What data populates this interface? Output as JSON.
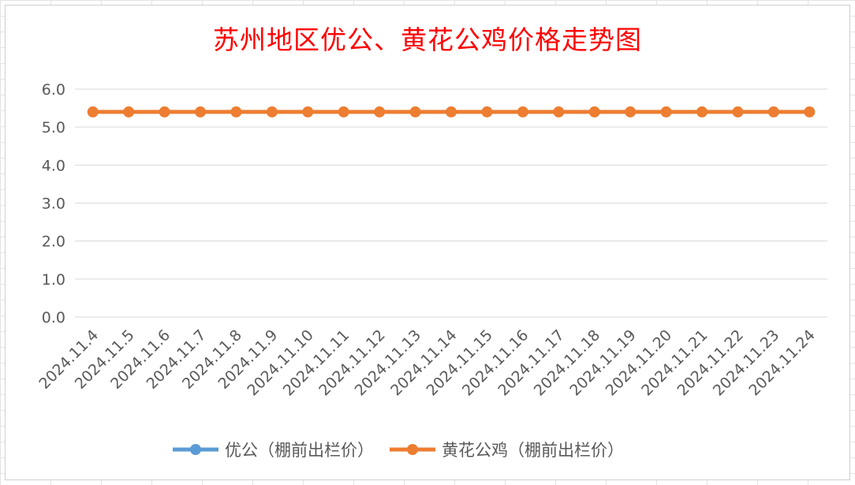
{
  "chart_data": {
    "type": "line",
    "title": "苏州地区优公、黄花公鸡价格走势图",
    "categories": [
      "2024.11.4",
      "2024.11.5",
      "2024.11.6",
      "2024.11.7",
      "2024.11.8",
      "2024.11.9",
      "2024.11.10",
      "2024.11.11",
      "2024.11.12",
      "2024.11.13",
      "2024.11.14",
      "2024.11.15",
      "2024.11.16",
      "2024.11.17",
      "2024.11.18",
      "2024.11.19",
      "2024.11.20",
      "2024.11.21",
      "2024.11.22",
      "2024.11.23",
      "2024.11.24"
    ],
    "series": [
      {
        "name": "优公（棚前出栏价）",
        "color": "#5b9bd5",
        "values": [
          null,
          null,
          null,
          null,
          null,
          null,
          null,
          null,
          null,
          null,
          null,
          null,
          null,
          null,
          null,
          null,
          null,
          null,
          null,
          null,
          null
        ]
      },
      {
        "name": "黄花公鸡（棚前出栏价）",
        "color": "#ed7d31",
        "values": [
          5.4,
          5.4,
          5.4,
          5.4,
          5.4,
          5.4,
          5.4,
          5.4,
          5.4,
          5.4,
          5.4,
          5.4,
          5.4,
          5.4,
          5.4,
          5.4,
          5.4,
          5.4,
          5.4,
          5.4,
          5.4
        ]
      }
    ],
    "ylim": [
      0,
      6
    ],
    "y_ticks": [
      "0.0",
      "1.0",
      "2.0",
      "3.0",
      "4.0",
      "5.0",
      "6.0"
    ],
    "xlabel": "",
    "ylabel": "",
    "grid": true,
    "legend_position": "bottom"
  }
}
